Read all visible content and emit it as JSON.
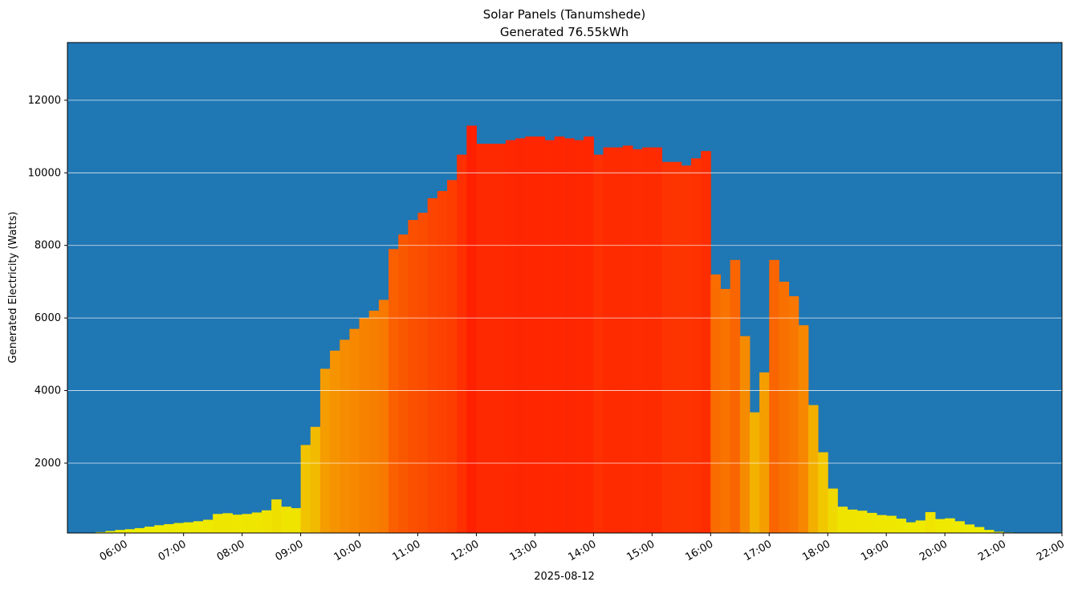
{
  "chart_data": {
    "type": "bar",
    "title": "Solar Panels (Tanumshede)",
    "subtitle": "Generated 76.55kWh",
    "x_label": "2025-08-12",
    "y_label": "Generated Electricity (Watts)",
    "x": [
      "05:30",
      "05:40",
      "05:50",
      "06:00",
      "06:10",
      "06:20",
      "06:30",
      "06:40",
      "06:50",
      "07:00",
      "07:10",
      "07:20",
      "07:30",
      "07:40",
      "07:50",
      "08:00",
      "08:10",
      "08:20",
      "08:30",
      "08:40",
      "08:50",
      "09:00",
      "09:10",
      "09:20",
      "09:30",
      "09:40",
      "09:50",
      "10:00",
      "10:10",
      "10:20",
      "10:30",
      "10:40",
      "10:50",
      "11:00",
      "11:10",
      "11:20",
      "11:30",
      "11:40",
      "11:50",
      "12:00",
      "12:10",
      "12:20",
      "12:30",
      "12:40",
      "12:50",
      "13:00",
      "13:10",
      "13:20",
      "13:30",
      "13:40",
      "13:50",
      "14:00",
      "14:10",
      "14:20",
      "14:30",
      "14:40",
      "14:50",
      "15:00",
      "15:10",
      "15:20",
      "15:30",
      "15:40",
      "15:50",
      "16:00",
      "16:10",
      "16:20",
      "16:30",
      "16:40",
      "16:50",
      "17:00",
      "17:10",
      "17:20",
      "17:30",
      "17:40",
      "17:50",
      "18:00",
      "18:10",
      "18:20",
      "18:30",
      "18:40",
      "18:50",
      "19:00",
      "19:10",
      "19:20",
      "19:30",
      "19:40",
      "19:50",
      "20:00",
      "20:10",
      "20:20",
      "20:30",
      "20:40",
      "20:50",
      "21:00",
      "21:10",
      "21:20",
      "21:30",
      "21:40",
      "21:50"
    ],
    "values": [
      100,
      130,
      160,
      180,
      210,
      250,
      290,
      320,
      350,
      370,
      400,
      440,
      600,
      620,
      580,
      600,
      640,
      700,
      1000,
      800,
      760,
      2500,
      3000,
      4600,
      5100,
      5400,
      5700,
      6000,
      6200,
      6500,
      7900,
      8300,
      8700,
      8900,
      9300,
      9500,
      9800,
      10500,
      11300,
      10800,
      10800,
      10800,
      10900,
      10950,
      11000,
      11000,
      10900,
      11000,
      10950,
      10900,
      11000,
      10500,
      10700,
      10700,
      10750,
      10650,
      10700,
      10700,
      10300,
      10300,
      10200,
      10400,
      10600,
      7200,
      6800,
      7600,
      5500,
      3400,
      4500,
      7600,
      7000,
      6600,
      5800,
      3600,
      2300,
      1300,
      800,
      720,
      690,
      630,
      570,
      550,
      470,
      370,
      420,
      650,
      460,
      480,
      400,
      310,
      240,
      160,
      110,
      90,
      80,
      80,
      80,
      80,
      80
    ],
    "colormap": [
      "#eef000",
      "#ff2000"
    ],
    "background": "#1f77b4",
    "xlim": [
      "05:01",
      "22:00"
    ],
    "xticks": [
      "06:00",
      "07:00",
      "08:00",
      "09:00",
      "10:00",
      "11:00",
      "12:00",
      "13:00",
      "14:00",
      "15:00",
      "16:00",
      "17:00",
      "18:00",
      "19:00",
      "20:00",
      "21:00",
      "22:00"
    ],
    "ylim": [
      75,
      13590
    ],
    "yticks": [
      2000,
      4000,
      6000,
      8000,
      10000,
      12000
    ],
    "grid": true
  }
}
